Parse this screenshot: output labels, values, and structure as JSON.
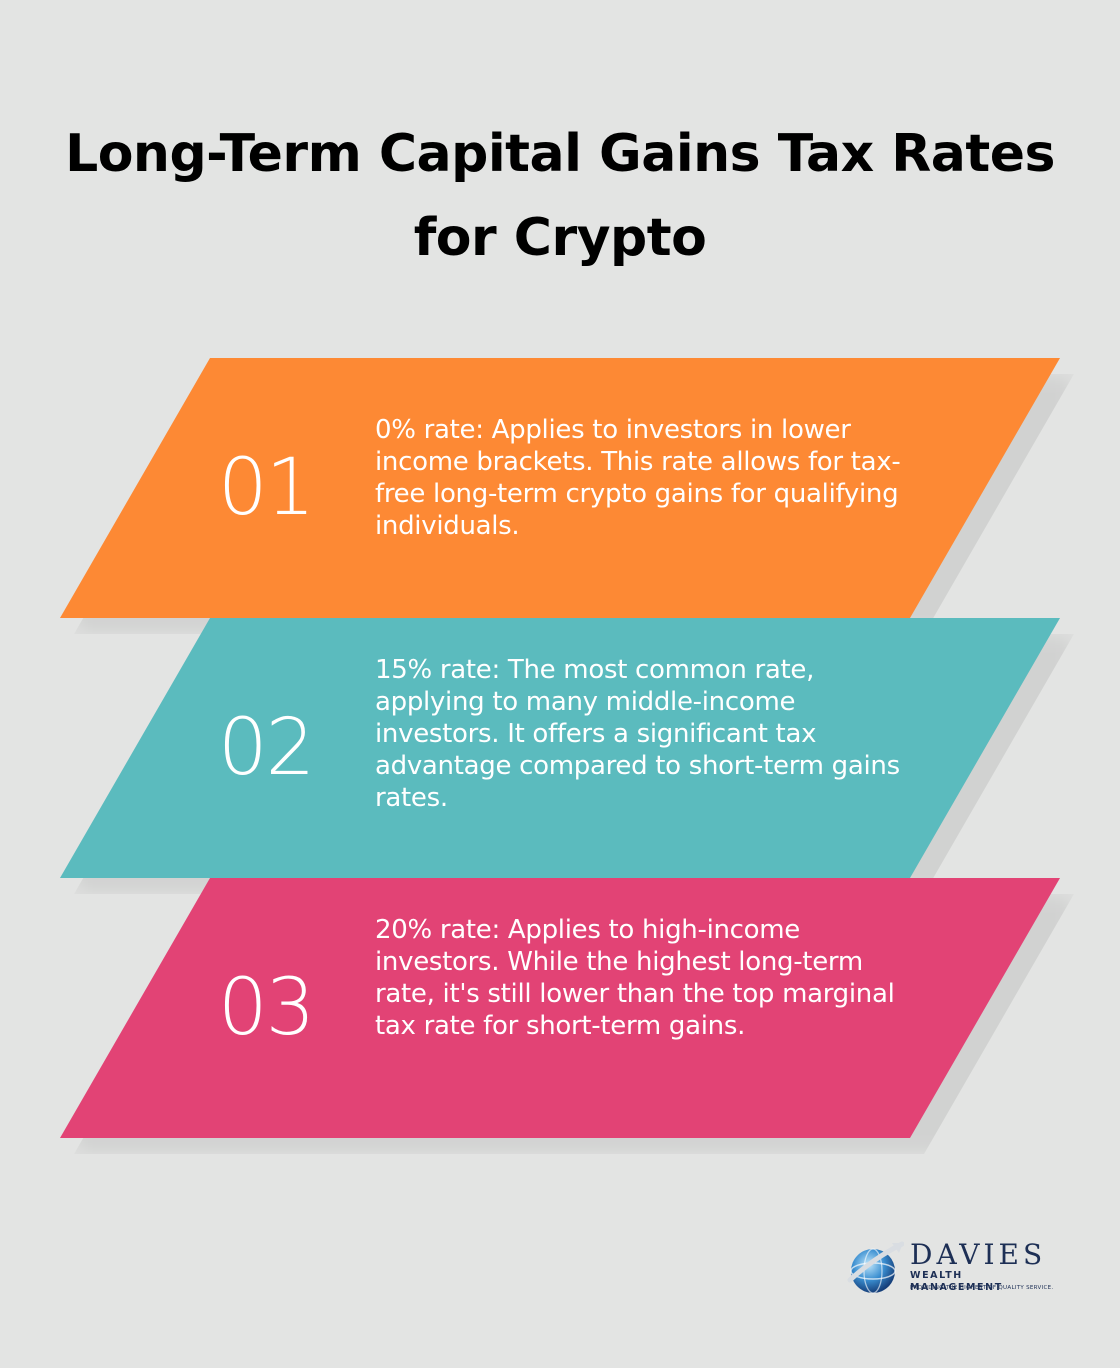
{
  "title": "Long-Term Capital Gains Tax Rates for Crypto",
  "items": [
    {
      "number": "01",
      "text": "0% rate: Applies to investors in lower income brackets. This rate allows for tax-free long-term crypto gains for qualifying individuals.",
      "color": "#fd8934"
    },
    {
      "number": "02",
      "text": "15% rate: The most common rate, applying to many middle-income investors. It offers a significant tax advantage compared to short-term gains rates.",
      "color": "#5bbbbe"
    },
    {
      "number": "03",
      "text": "20% rate: Applies to high-income investors. While the highest long-term rate, it's still lower than the top marginal tax rate for short-term gains.",
      "color": "#e24375"
    }
  ],
  "logo": {
    "name": "DAVIES",
    "subtitle": "WEALTH MANAGEMENT",
    "tagline": "PROVIDING THE HIGHEST OF QUALITY SERVICE."
  }
}
